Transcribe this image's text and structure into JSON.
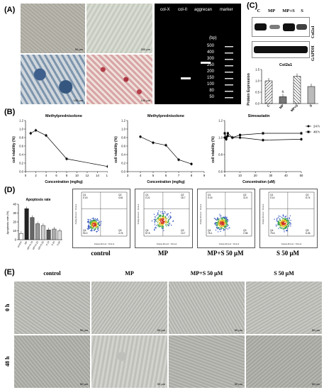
{
  "panels": {
    "A": "(A)",
    "B": "(B)",
    "C": "(C)",
    "D": "(D)",
    "E": "(E)"
  },
  "panel_a": {
    "scale_bars": [
      "50 μm",
      "200 μm",
      "100 μm",
      "100 μm"
    ],
    "gel": {
      "lanes": [
        "col-X",
        "col-II",
        "aggrecan",
        "marker"
      ],
      "bp_unit": "(bp)",
      "bp_ticks": [
        "500",
        "400",
        "300",
        "250",
        "200",
        "150",
        "100",
        "80",
        "50"
      ]
    }
  },
  "panel_c": {
    "lanes": [
      "C",
      "MP",
      "MP+S",
      "S"
    ],
    "blot_labels": [
      "Col2a1",
      "GAPDH"
    ]
  },
  "panel_e": {
    "columns": [
      "control",
      "MP",
      "MP+S 50 μM",
      "S 50 μM"
    ],
    "rows": [
      "0 h",
      "48 h"
    ],
    "scale": "50 μm"
  },
  "panel_d": {
    "flow_labels": [
      "control",
      "MP",
      "MP+S 50 μM",
      "S 50 μM"
    ],
    "quadrant_values": [
      [
        "Q1\n0.15",
        "Q2\n4.81",
        "Q4\n90.2",
        "Q3\n4.76"
      ],
      [
        "Q1\n0.21",
        "Q2\n18.7",
        "Q4\n57.8",
        "Q3\n13.7"
      ],
      [
        "Q1\n0.15",
        "Q2\n11.5",
        "Q4\n76.1",
        "Q3\n2.96"
      ],
      [
        "Q1\n0.14",
        "Q2\n6.74",
        "Q4\n79.6",
        "Q3\n6.36"
      ]
    ],
    "flow_axis_x": "Comp-FL1-A :: FL1-A",
    "flow_axis_y": "Comp-FL3-A :: FL3-A"
  },
  "chart_data": [
    {
      "type": "bar",
      "title": "Col2a1",
      "categories": [
        "C",
        "MP",
        "MP+S",
        "S"
      ],
      "values": [
        1.0,
        0.3,
        1.2,
        0.75
      ],
      "ylabel": "Protein Expression",
      "ylim": [
        0.0,
        1.5
      ],
      "yticks": [
        "0.0",
        "0.5",
        "1.0",
        "1.5"
      ],
      "annotations": [
        "&",
        "#"
      ]
    },
    {
      "type": "line",
      "title": "Methylprednisolone",
      "xlabel": "Concentration (mg/kg)",
      "ylabel": "cell viability (%)",
      "x": [
        1,
        2,
        4,
        8,
        16
      ],
      "values": [
        0.9,
        0.97,
        0.85,
        0.3,
        0.12
      ],
      "xlim": [
        0,
        16
      ],
      "ylim": [
        0,
        1.2
      ],
      "xticks": [
        "0",
        "2",
        "4",
        "6",
        "8",
        "10",
        "12",
        "14",
        "16"
      ],
      "yticks": [
        "0.0",
        "0.2",
        "0.4",
        "0.6",
        "0.8",
        "1.0",
        "1.2"
      ]
    },
    {
      "type": "line",
      "title": "Methylprednisolone",
      "xlabel": "Concentration (mg/kg)",
      "ylabel": "cell viability (%)",
      "x": [
        4,
        5,
        6,
        7,
        8
      ],
      "values": [
        0.82,
        0.68,
        0.62,
        0.28,
        0.18
      ],
      "xlim": [
        3,
        9
      ],
      "ylim": [
        0,
        1.2
      ],
      "xticks": [
        "3",
        "4",
        "5",
        "6",
        "7",
        "8",
        "9"
      ],
      "yticks": [
        "0.0",
        "0.2",
        "0.4",
        "0.6",
        "0.8",
        "1.0",
        "1.2"
      ]
    },
    {
      "type": "line",
      "title": "Simvastatin",
      "xlabel": "Concentration (uM)",
      "ylabel": "cell viability (%)",
      "x": [
        0,
        1,
        2,
        5,
        10,
        25,
        50
      ],
      "series": [
        {
          "name": "24 h",
          "values": [
            1.0,
            0.98,
            1.02,
            1.0,
            1.0,
            0.97,
            0.98
          ]
        },
        {
          "name": "48 h",
          "values": [
            1.05,
            1.0,
            1.05,
            1.0,
            1.03,
            1.05,
            1.05
          ]
        }
      ],
      "xlim": [
        0,
        50
      ],
      "ylim": [
        0.6,
        1.2
      ],
      "xticks": [
        "0",
        "10",
        "20",
        "30",
        "40",
        "50"
      ],
      "yticks": [
        "0.6",
        "0.8",
        "1.0",
        "1.2"
      ]
    },
    {
      "type": "bar",
      "title": "Apoptosis rate",
      "ylabel": "Apoptosis rate (%)",
      "categories": [
        "control",
        "MP",
        "MP+S 10",
        "MP+S 25",
        "MP+S 50",
        "S 10",
        "S 25",
        "S 50"
      ],
      "values": [
        7,
        35,
        25,
        18,
        16,
        11,
        12,
        10
      ],
      "ylim": [
        0,
        40
      ],
      "yticks": [
        "0",
        "10",
        "20",
        "30",
        "40"
      ]
    }
  ]
}
